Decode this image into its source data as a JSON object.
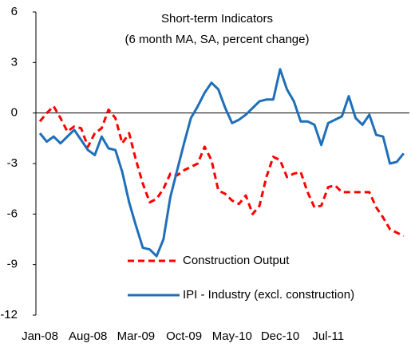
{
  "chart_data": {
    "type": "line",
    "title": "Short-term Indicators",
    "subtitle": "(6 month MA, SA, percent change)",
    "categories": [
      "Jan-08",
      null,
      null,
      null,
      null,
      null,
      null,
      "Aug-08",
      null,
      null,
      null,
      null,
      null,
      null,
      "Mar-09",
      null,
      null,
      null,
      null,
      null,
      null,
      "Oct-09",
      null,
      null,
      null,
      null,
      null,
      null,
      "May-10",
      null,
      null,
      null,
      null,
      null,
      null,
      "Dec-10",
      null,
      null,
      null,
      null,
      null,
      null,
      "Jul-11",
      null,
      null,
      null,
      null,
      null,
      null,
      null,
      null,
      null,
      null,
      null
    ],
    "series": [
      {
        "name": "Construction Output",
        "color": "#ff0000",
        "dash": true,
        "values": [
          -0.5,
          0,
          0.4,
          -0.3,
          -1.1,
          -0.8,
          -0.9,
          -2.0,
          -1.2,
          -0.9,
          0.2,
          -0.3,
          -1.8,
          -1.2,
          -2.8,
          -4.2,
          -5.3,
          -5.1,
          -4.5,
          -3.6,
          -3.7,
          -3.4,
          -3.2,
          -3.0,
          -2.0,
          -2.8,
          -4.6,
          -4.8,
          -5.2,
          -5.4,
          -4.9,
          -6.0,
          -5.5,
          -3.8,
          -2.6,
          -2.8,
          -3.8,
          -3.6,
          -3.5,
          -4.7,
          -5.6,
          -5.5,
          -4.4,
          -4.3,
          -4.7,
          -4.7,
          -4.7,
          -4.7,
          -4.7,
          -5.6,
          -6.2,
          -6.9,
          -7.1,
          -7.3
        ]
      },
      {
        "name": "IPI - Industry (excl. construction)",
        "color": "#1f6fb8",
        "dash": false,
        "values": [
          -1.2,
          -1.7,
          -1.4,
          -1.8,
          -1.4,
          -1.0,
          -1.6,
          -2.2,
          -2.5,
          -1.4,
          -2.1,
          -2.2,
          -3.5,
          -5.3,
          -6.7,
          -8.0,
          -8.1,
          -8.5,
          -7.5,
          -5.0,
          -3.4,
          -1.8,
          -0.3,
          0.4,
          1.2,
          1.8,
          1.4,
          0.3,
          -0.6,
          -0.4,
          -0.1,
          0.3,
          0.7,
          0.8,
          0.8,
          2.6,
          1.4,
          0.7,
          -0.5,
          -0.5,
          -0.7,
          -1.9,
          -0.6,
          -0.4,
          -0.2,
          1.0,
          -0.3,
          -0.7,
          -0.1,
          -1.3,
          -1.4,
          -3.0,
          -2.9,
          -2.4
        ]
      }
    ],
    "ylim": [
      -12,
      6
    ],
    "yticks": [
      -12,
      -9,
      -6,
      -3,
      0,
      3,
      6
    ],
    "grid": false
  }
}
